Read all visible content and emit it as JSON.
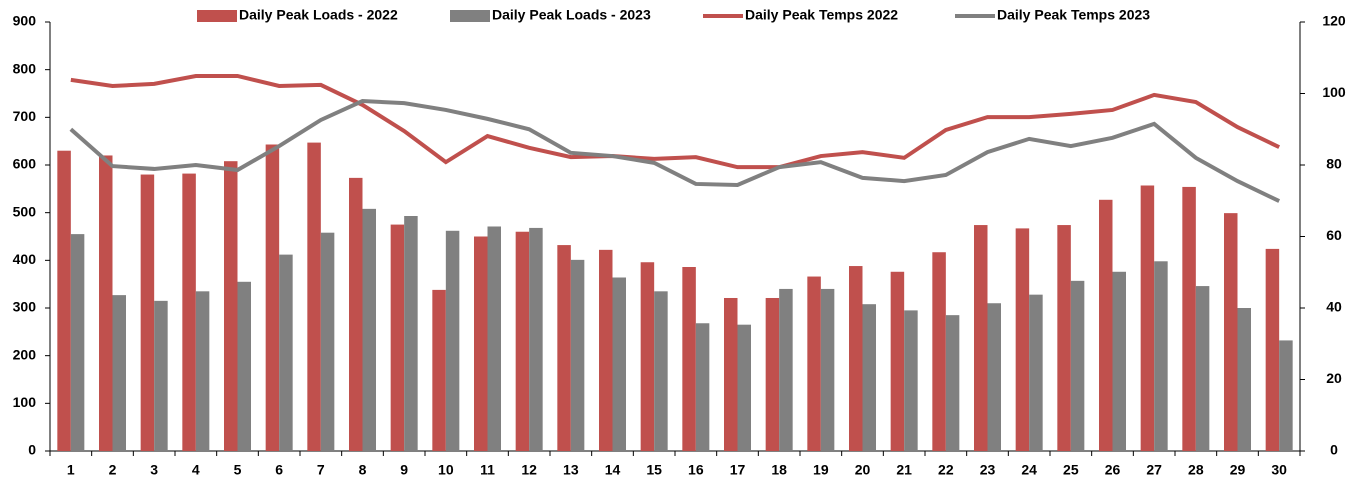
{
  "chart_data": {
    "type": "bar_line_combo",
    "categories": [
      "1",
      "2",
      "3",
      "4",
      "5",
      "6",
      "7",
      "8",
      "9",
      "10",
      "11",
      "12",
      "13",
      "14",
      "15",
      "16",
      "17",
      "18",
      "19",
      "20",
      "21",
      "22",
      "23",
      "24",
      "25",
      "26",
      "27",
      "28",
      "29",
      "30"
    ],
    "series": [
      {
        "name": "Daily Peak Loads - 2022",
        "type": "bar",
        "color": "#c0504d",
        "values": [
          630,
          620,
          580,
          582,
          608,
          643,
          647,
          573,
          475,
          338,
          450,
          460,
          432,
          422,
          396,
          386,
          321,
          321,
          366,
          388,
          376,
          417,
          474,
          467,
          474,
          527,
          557,
          554,
          499,
          424
        ]
      },
      {
        "name": "Daily Peak Loads - 2023",
        "type": "bar",
        "color": "#808080",
        "values": [
          455,
          327,
          315,
          335,
          355,
          412,
          458,
          508,
          493,
          462,
          471,
          468,
          401,
          364,
          335,
          268,
          265,
          340,
          340,
          308,
          295,
          285,
          310,
          328,
          357,
          376,
          398,
          346,
          300,
          232
        ]
      },
      {
        "name": "Daily Peak Temps 2022",
        "type": "line",
        "axis": "y2",
        "color": "#c0504d",
        "values": [
          103.8,
          102.1,
          102.7,
          104.9,
          104.9,
          102.1,
          102.4,
          96.8,
          89.5,
          80.8,
          88.1,
          84.8,
          82.2,
          82.5,
          81.7,
          82.2,
          79.4,
          79.4,
          82.5,
          83.6,
          82,
          89.8,
          93.4,
          93.4,
          94.3,
          95.4,
          99.6,
          97.6,
          90.6,
          85
        ]
      },
      {
        "name": "Daily Peak Temps 2023",
        "type": "line",
        "axis": "y2",
        "color": "#808080",
        "values": [
          90,
          79.7,
          78.9,
          80,
          78.6,
          85.3,
          92.6,
          97.9,
          97.3,
          95.4,
          92.9,
          90,
          83.4,
          82.5,
          80.6,
          74.7,
          74.4,
          79.4,
          80.8,
          76.4,
          75.5,
          77.2,
          83.6,
          87.3,
          85.3,
          87.6,
          91.5,
          82,
          75.5,
          69.9
        ]
      }
    ],
    "ylim": [
      0,
      900
    ],
    "yticks": [
      0,
      100,
      200,
      300,
      400,
      500,
      600,
      700,
      800,
      900
    ],
    "y2lim": [
      0,
      120
    ],
    "y2ticks": [
      0,
      20,
      40,
      60,
      80,
      100,
      120
    ],
    "grid": false,
    "legend": "top"
  }
}
